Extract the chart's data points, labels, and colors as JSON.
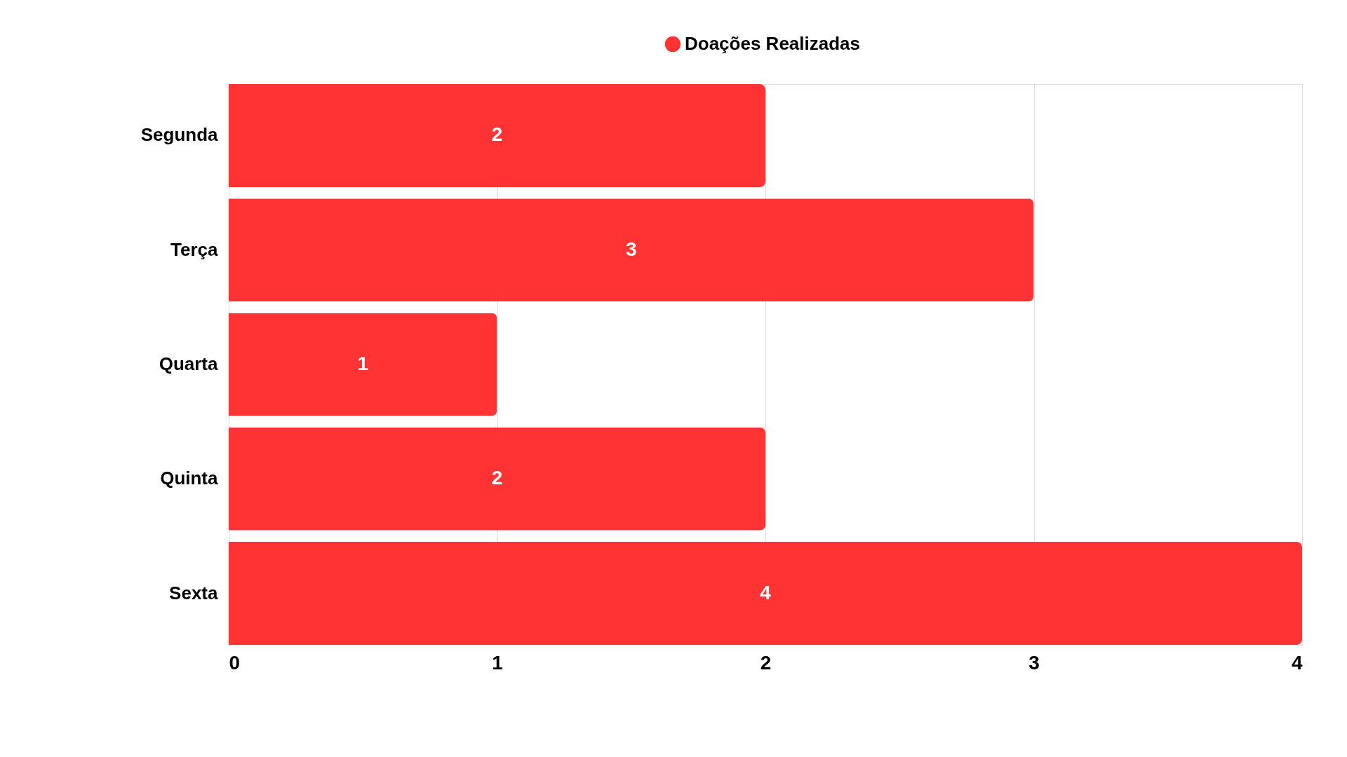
{
  "chart_data": {
    "type": "bar",
    "orientation": "horizontal",
    "categories": [
      "Segunda",
      "Terça",
      "Quarta",
      "Quinta",
      "Sexta"
    ],
    "series": [
      {
        "name": "Doações Realizadas",
        "color": "#ff3333",
        "values": [
          2,
          3,
          1,
          2,
          4
        ]
      }
    ],
    "xlim": [
      0,
      4
    ],
    "xticks": [
      0,
      1,
      2,
      3,
      4
    ],
    "grid": "x",
    "legend": "top",
    "data_labels": true
  }
}
